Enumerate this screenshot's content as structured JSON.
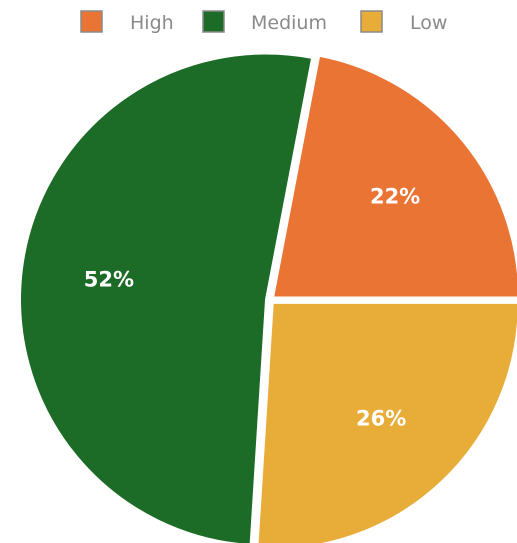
{
  "chart_data": {
    "type": "pie",
    "categories": [
      "High",
      "Medium",
      "Low"
    ],
    "values": [
      22,
      52,
      26
    ],
    "labels": [
      "22%",
      "52%",
      "26%"
    ],
    "colors": [
      "#ea7434",
      "#1c6b27",
      "#e8ad39"
    ],
    "legend_position": "top",
    "start_angle_deg": 0,
    "direction": "counterclockwise",
    "exploded": true
  }
}
